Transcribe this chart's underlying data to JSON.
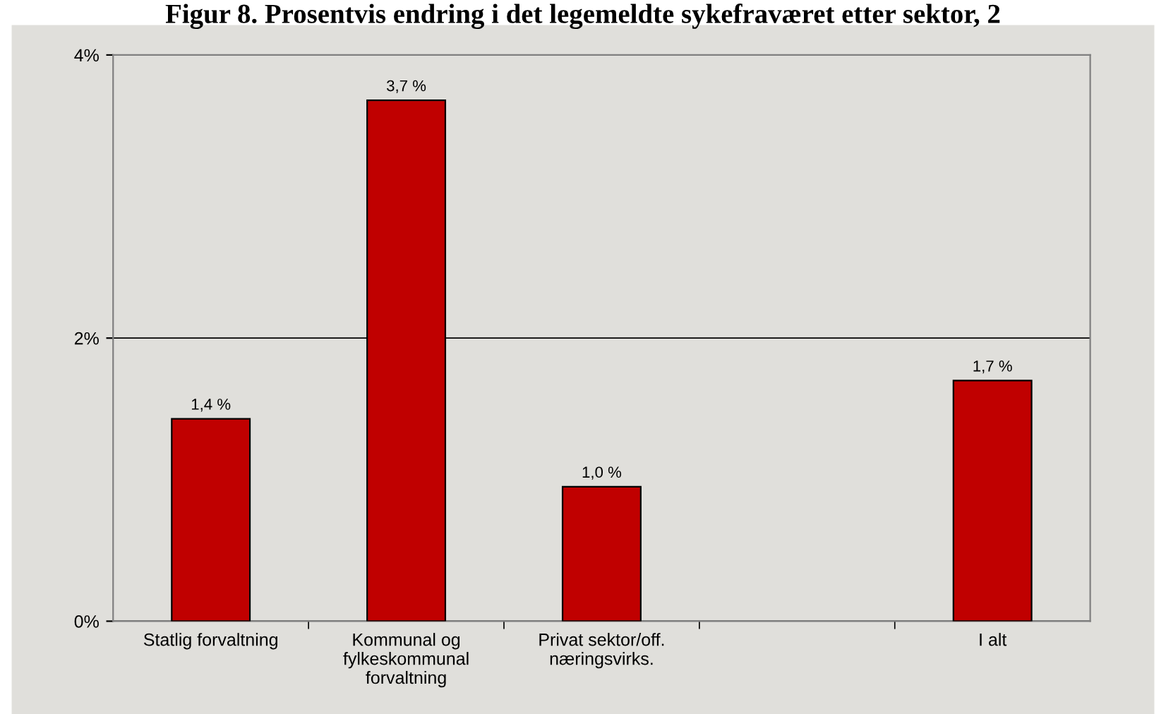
{
  "chart_data": {
    "type": "bar",
    "title": "Figur 8. Prosentvis endring i det legemeldte sykefraværet etter sektor, 2",
    "categories": [
      "Statlig forvaltning",
      "Kommunal og\nfylkeskommunal\nforvaltning",
      "Privat sektor/off.\nnæringsvirks.",
      null,
      "I alt"
    ],
    "values": [
      1.43,
      3.68,
      0.95,
      null,
      1.7
    ],
    "value_labels": [
      "1,4 %",
      "3,7 %",
      "1,0 %",
      null,
      "1,7 %"
    ],
    "color": "#c00000",
    "ylim": [
      0,
      4
    ],
    "yticks": [
      {
        "value": 0,
        "label": "0%"
      },
      {
        "value": 2,
        "label": "2%"
      },
      {
        "value": 4,
        "label": "4%"
      }
    ],
    "grid": "y",
    "legend": false
  }
}
